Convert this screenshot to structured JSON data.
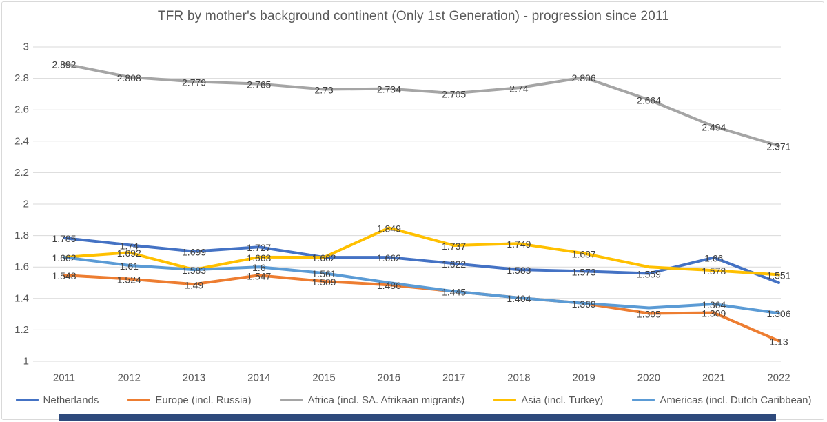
{
  "chart_data": {
    "type": "line",
    "title": "TFR by mother's background continent (Only 1st Generation) - progression since 2011",
    "categories": [
      "2011",
      "2012",
      "2013",
      "2014",
      "2015",
      "2016",
      "2017",
      "2018",
      "2019",
      "2020",
      "2021",
      "2022"
    ],
    "xlabel": "",
    "ylabel": "",
    "ylim": [
      1,
      3
    ],
    "grid": true,
    "legend_position": "bottom",
    "y_axis": {
      "min": 1,
      "max": 3,
      "step": 0.2,
      "tick_labels": [
        "3",
        "2.8",
        "2.6",
        "2.4",
        "2.2",
        "2",
        "1.8",
        "1.6",
        "1.4",
        "1.2",
        "1"
      ]
    },
    "series": [
      {
        "name": "Netherlands",
        "color": "#4472c4",
        "values": [
          1.785,
          1.74,
          1.699,
          1.727,
          1.662,
          1.662,
          1.622,
          1.583,
          1.573,
          1.559,
          1.66,
          1.5
        ],
        "labels": [
          "1.785",
          "1.74",
          "1.699",
          "1.727",
          "1.662",
          "1.662",
          "1.622",
          "1.583",
          "1.573",
          "1.559",
          "1.66",
          null
        ]
      },
      {
        "name": "Europe (incl. Russia)",
        "color": "#ed7d31",
        "values": [
          1.548,
          1.524,
          1.49,
          1.547,
          1.509,
          1.486,
          1.445,
          1.404,
          1.369,
          1.305,
          1.309,
          1.13
        ],
        "labels": [
          "1.548",
          "1.524",
          "1.49",
          "1.547",
          "1.509",
          "1.486",
          "1.445",
          "1.404",
          "1.369",
          "1.305",
          "1.309",
          "1.13"
        ]
      },
      {
        "name": "Africa (incl. SA. Afrikaan migrants)",
        "color": "#a5a5a5",
        "values": [
          2.892,
          2.808,
          2.779,
          2.765,
          2.73,
          2.734,
          2.705,
          2.74,
          2.806,
          2.664,
          2.494,
          2.371
        ],
        "labels": [
          "2.892",
          "2.808",
          "2.779",
          "2.765",
          "2.73",
          "2.734",
          "2.705",
          "2.74",
          "2.806",
          "2.664",
          "2.494",
          "2.371"
        ]
      },
      {
        "name": "Asia (incl. Turkey)",
        "color": "#ffc000",
        "values": [
          1.662,
          1.692,
          1.583,
          1.663,
          1.662,
          1.849,
          1.737,
          1.749,
          1.687,
          1.6,
          1.578,
          1.551
        ],
        "labels": [
          null,
          "1.692",
          null,
          "1.663",
          null,
          "1.849",
          "1.737",
          "1.749",
          "1.687",
          null,
          "1.578",
          "1.551"
        ]
      },
      {
        "name": "Americas (incl. Dutch Caribbean)",
        "color": "#5b9bd5",
        "values": [
          1.662,
          1.61,
          1.583,
          1.6,
          1.561,
          1.5,
          1.445,
          1.404,
          1.369,
          1.34,
          1.364,
          1.306
        ],
        "labels": [
          "1.662",
          "1.61",
          "1.583",
          "1.6",
          "1.561",
          null,
          null,
          null,
          null,
          null,
          "1.364",
          "1.306"
        ]
      }
    ]
  },
  "style": {
    "gridline_color": "#d9d9d9",
    "axis_text_color": "#595959",
    "data_label_color": "#404040",
    "title_color": "#595959",
    "frame_border_color": "#d9d9d9",
    "bottom_bar_color": "#2e4a7c"
  }
}
